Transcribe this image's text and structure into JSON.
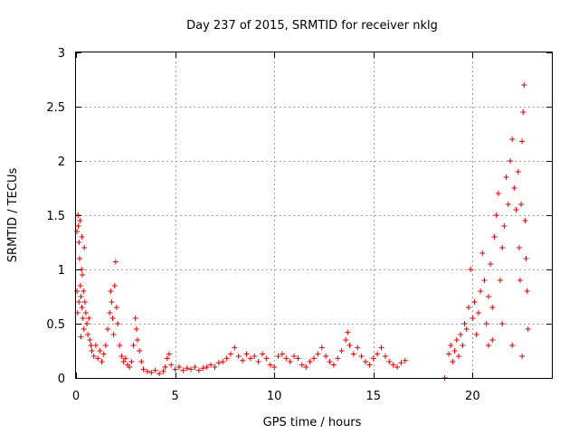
{
  "chart_data": {
    "type": "scatter",
    "title": "Day 237 of 2015, SRMTID for receiver nklg",
    "xlabel": "GPS time / hours",
    "ylabel": "SRMTID / TECUs",
    "xlim": [
      0,
      24
    ],
    "ylim": [
      0,
      3
    ],
    "xticks": [
      0,
      5,
      10,
      15,
      20
    ],
    "xtick_labels": [
      "0",
      "5",
      "10",
      "15",
      "20"
    ],
    "yticks": [
      0,
      0.5,
      1,
      1.5,
      2,
      2.5,
      3
    ],
    "ytick_labels": [
      "0",
      "0.5",
      "1",
      "1.5",
      "2",
      "2.5",
      "3"
    ],
    "grid": true,
    "marker": "plus",
    "color": "#e00000",
    "series": [
      {
        "name": "SRMTID",
        "points": [
          [
            0.05,
            1.35
          ],
          [
            0.1,
            1.5
          ],
          [
            0.12,
            1.4
          ],
          [
            0.15,
            1.25
          ],
          [
            0.18,
            1.1
          ],
          [
            0.2,
            1.45
          ],
          [
            0.22,
            0.85
          ],
          [
            0.25,
            0.75
          ],
          [
            0.28,
            1.0
          ],
          [
            0.3,
            0.65
          ],
          [
            0.32,
            0.95
          ],
          [
            0.35,
            0.55
          ],
          [
            0.38,
            0.8
          ],
          [
            0.4,
            0.45
          ],
          [
            0.45,
            0.7
          ],
          [
            0.5,
            0.6
          ],
          [
            0.55,
            0.5
          ],
          [
            0.6,
            0.4
          ],
          [
            0.65,
            0.55
          ],
          [
            0.7,
            0.35
          ],
          [
            0.75,
            0.3
          ],
          [
            0.05,
            0.8
          ],
          [
            0.08,
            0.6
          ],
          [
            0.15,
            0.7
          ],
          [
            0.25,
            0.38
          ],
          [
            0.42,
            1.2
          ],
          [
            0.3,
            1.3
          ],
          [
            0.8,
            0.25
          ],
          [
            0.9,
            0.2
          ],
          [
            1.0,
            0.3
          ],
          [
            1.1,
            0.18
          ],
          [
            1.2,
            0.25
          ],
          [
            1.3,
            0.15
          ],
          [
            1.4,
            0.22
          ],
          [
            1.5,
            0.3
          ],
          [
            1.6,
            0.45
          ],
          [
            1.7,
            0.6
          ],
          [
            1.75,
            0.8
          ],
          [
            1.8,
            0.7
          ],
          [
            1.85,
            0.55
          ],
          [
            1.9,
            0.4
          ],
          [
            1.95,
            0.85
          ],
          [
            2.0,
            1.07
          ],
          [
            2.05,
            0.65
          ],
          [
            2.1,
            0.5
          ],
          [
            2.2,
            0.3
          ],
          [
            2.3,
            0.2
          ],
          [
            2.4,
            0.15
          ],
          [
            2.5,
            0.18
          ],
          [
            2.6,
            0.12
          ],
          [
            2.7,
            0.1
          ],
          [
            2.8,
            0.15
          ],
          [
            2.9,
            0.3
          ],
          [
            3.0,
            0.55
          ],
          [
            3.05,
            0.45
          ],
          [
            3.1,
            0.35
          ],
          [
            3.2,
            0.25
          ],
          [
            3.3,
            0.15
          ],
          [
            3.4,
            0.08
          ],
          [
            3.6,
            0.06
          ],
          [
            3.8,
            0.05
          ],
          [
            4.0,
            0.07
          ],
          [
            4.2,
            0.04
          ],
          [
            4.4,
            0.06
          ],
          [
            4.5,
            0.1
          ],
          [
            4.6,
            0.18
          ],
          [
            4.7,
            0.22
          ],
          [
            4.8,
            0.12
          ],
          [
            5.0,
            0.08
          ],
          [
            5.2,
            0.1
          ],
          [
            5.4,
            0.07
          ],
          [
            5.6,
            0.09
          ],
          [
            5.8,
            0.08
          ],
          [
            6.0,
            0.1
          ],
          [
            6.2,
            0.07
          ],
          [
            6.4,
            0.09
          ],
          [
            6.6,
            0.1
          ],
          [
            6.8,
            0.12
          ],
          [
            7.0,
            0.1
          ],
          [
            7.2,
            0.14
          ],
          [
            7.4,
            0.15
          ],
          [
            7.6,
            0.18
          ],
          [
            7.8,
            0.22
          ],
          [
            8.0,
            0.28
          ],
          [
            8.2,
            0.2
          ],
          [
            8.4,
            0.16
          ],
          [
            8.6,
            0.22
          ],
          [
            8.8,
            0.18
          ],
          [
            9.0,
            0.2
          ],
          [
            9.2,
            0.15
          ],
          [
            9.4,
            0.22
          ],
          [
            9.6,
            0.18
          ],
          [
            9.8,
            0.12
          ],
          [
            10.0,
            0.1
          ],
          [
            10.2,
            0.2
          ],
          [
            10.4,
            0.22
          ],
          [
            10.6,
            0.18
          ],
          [
            10.8,
            0.15
          ],
          [
            11.0,
            0.2
          ],
          [
            11.2,
            0.18
          ],
          [
            11.4,
            0.12
          ],
          [
            11.6,
            0.1
          ],
          [
            11.8,
            0.15
          ],
          [
            12.0,
            0.18
          ],
          [
            12.2,
            0.22
          ],
          [
            12.4,
            0.28
          ],
          [
            12.6,
            0.2
          ],
          [
            12.8,
            0.15
          ],
          [
            13.0,
            0.12
          ],
          [
            13.2,
            0.18
          ],
          [
            13.4,
            0.25
          ],
          [
            13.6,
            0.35
          ],
          [
            13.7,
            0.42
          ],
          [
            13.8,
            0.3
          ],
          [
            14.0,
            0.22
          ],
          [
            14.2,
            0.28
          ],
          [
            14.4,
            0.2
          ],
          [
            14.6,
            0.15
          ],
          [
            14.8,
            0.12
          ],
          [
            15.0,
            0.18
          ],
          [
            15.2,
            0.22
          ],
          [
            15.4,
            0.28
          ],
          [
            15.6,
            0.2
          ],
          [
            15.8,
            0.15
          ],
          [
            16.0,
            0.12
          ],
          [
            16.2,
            0.1
          ],
          [
            16.4,
            0.14
          ],
          [
            16.6,
            0.16
          ],
          [
            18.6,
            0.0
          ],
          [
            18.8,
            0.22
          ],
          [
            18.9,
            0.3
          ],
          [
            19.0,
            0.15
          ],
          [
            19.1,
            0.25
          ],
          [
            19.2,
            0.35
          ],
          [
            19.3,
            0.2
          ],
          [
            19.4,
            0.4
          ],
          [
            19.5,
            0.3
          ],
          [
            19.6,
            0.5
          ],
          [
            19.7,
            0.45
          ],
          [
            19.8,
            0.65
          ],
          [
            19.9,
            1.0
          ],
          [
            20.0,
            0.55
          ],
          [
            20.1,
            0.7
          ],
          [
            20.2,
            0.4
          ],
          [
            20.3,
            0.6
          ],
          [
            20.4,
            0.8
          ],
          [
            20.5,
            1.15
          ],
          [
            20.6,
            0.9
          ],
          [
            20.7,
            0.5
          ],
          [
            20.8,
            0.75
          ],
          [
            20.9,
            1.05
          ],
          [
            21.0,
            0.65
          ],
          [
            21.1,
            1.3
          ],
          [
            21.2,
            1.5
          ],
          [
            21.3,
            1.7
          ],
          [
            21.4,
            0.9
          ],
          [
            21.5,
            1.2
          ],
          [
            21.6,
            1.4
          ],
          [
            21.7,
            1.85
          ],
          [
            21.8,
            1.6
          ],
          [
            21.9,
            2.0
          ],
          [
            22.0,
            2.2
          ],
          [
            22.1,
            1.75
          ],
          [
            22.2,
            1.55
          ],
          [
            22.3,
            1.9
          ],
          [
            22.35,
            1.2
          ],
          [
            22.4,
            0.9
          ],
          [
            22.45,
            1.6
          ],
          [
            22.5,
            2.18
          ],
          [
            22.55,
            2.45
          ],
          [
            22.6,
            2.7
          ],
          [
            22.65,
            1.45
          ],
          [
            22.7,
            1.1
          ],
          [
            22.75,
            0.8
          ],
          [
            22.8,
            0.45
          ],
          [
            20.8,
            0.3
          ],
          [
            21.0,
            0.35
          ],
          [
            21.5,
            0.5
          ],
          [
            22.0,
            0.3
          ],
          [
            22.5,
            0.2
          ]
        ]
      }
    ]
  }
}
